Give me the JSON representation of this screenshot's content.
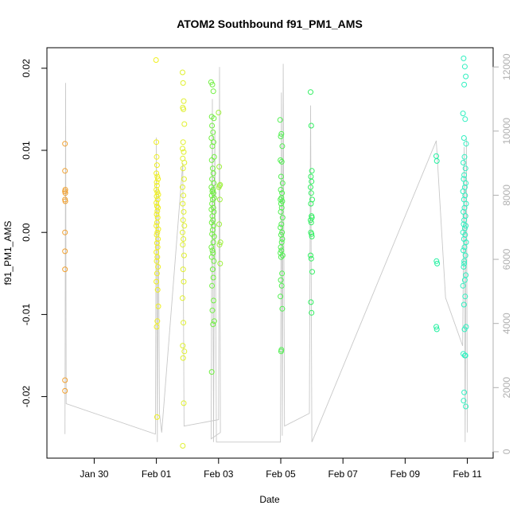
{
  "chart_data": {
    "type": "scatter",
    "title": "ATOM2 Southbound f91_PM1_AMS",
    "xlabel": "Date",
    "ylabel": "f91_PM1_AMS",
    "x_ticks": [
      "Jan 30",
      "Feb 01",
      "Feb 03",
      "Feb 05",
      "Feb 07",
      "Feb 09",
      "Feb 11"
    ],
    "x_tick_days": [
      30,
      32,
      34,
      36,
      38,
      40,
      42
    ],
    "xlim": [
      28.48,
      42.83
    ],
    "y_ticks": [
      -0.02,
      -0.01,
      0.0,
      0.01,
      0.02
    ],
    "y_tick_labels": [
      "-0.02",
      "-0.01",
      "0.00",
      "0.01",
      "0.02"
    ],
    "ylim": [
      -0.0275,
      0.0225
    ],
    "y2_ticks": [
      0,
      2000,
      4000,
      6000,
      8000,
      10000,
      12000
    ],
    "y2lim": [
      -200,
      12600
    ],
    "series": [
      {
        "color": "#f0a030",
        "x": [
          29.06,
          29.06,
          29.07,
          29.06,
          29.07,
          29.06,
          29.07,
          29.06,
          29.06,
          29.06,
          29.06,
          29.06
        ],
        "y": [
          0.0108,
          0.0075,
          0.0052,
          0.005,
          0.0048,
          0.004,
          0.0038,
          0.0,
          -0.0023,
          -0.0045,
          -0.018,
          -0.0193
        ]
      },
      {
        "color": "#f0f020",
        "x": [
          31.99,
          32.0,
          32.01,
          32.02,
          32.0,
          32.03,
          32.05,
          32.01,
          32.02,
          32.0,
          32.03,
          32.06,
          32.01,
          32.04,
          32.0,
          32.02,
          32.05,
          32.03,
          32.01,
          32.04,
          32.02,
          32.0,
          32.06,
          32.03,
          32.01,
          32.05,
          32.02,
          32.04,
          32.0,
          32.03,
          32.01,
          32.05,
          32.02,
          32.0,
          32.04,
          32.06,
          32.03,
          32.01,
          32.02
        ],
        "y": [
          0.021,
          0.011,
          0.0092,
          0.0082,
          0.0072,
          0.0068,
          0.0065,
          0.0061,
          0.0057,
          0.0052,
          0.0049,
          0.0046,
          0.0044,
          0.004,
          0.0036,
          0.0032,
          0.003,
          0.0026,
          0.0022,
          0.0018,
          0.0012,
          0.0008,
          0.0004,
          0.0,
          -0.0003,
          -0.0008,
          -0.0013,
          -0.0018,
          -0.0024,
          -0.003,
          -0.0035,
          -0.0042,
          -0.005,
          -0.006,
          -0.007,
          -0.009,
          -0.0108,
          -0.0115,
          -0.0225
        ]
      },
      {
        "color": "#e0f030",
        "x": [
          32.84,
          32.86,
          32.88,
          32.85,
          32.87,
          32.9,
          32.86,
          32.84,
          32.88,
          32.85,
          32.9,
          32.86,
          32.89,
          32.84,
          32.87,
          32.85,
          32.88,
          32.86,
          32.9,
          32.84,
          32.87,
          32.85,
          32.89,
          32.86,
          32.88,
          32.84,
          32.87,
          32.85,
          32.9,
          32.86,
          32.88,
          32.85
        ],
        "y": [
          0.0195,
          0.0182,
          0.016,
          0.0152,
          0.015,
          0.0132,
          0.011,
          0.0102,
          0.0098,
          0.009,
          0.0085,
          0.0078,
          0.0065,
          0.0055,
          0.0045,
          0.0035,
          0.0025,
          0.0015,
          0.0008,
          0.0,
          -0.0008,
          -0.0015,
          -0.0028,
          -0.0045,
          -0.006,
          -0.008,
          -0.011,
          -0.0138,
          -0.0145,
          -0.0153,
          -0.0208,
          -0.026
        ]
      },
      {
        "color": "#a0f040",
        "x": [
          34.0,
          34.02,
          34.05,
          34.03,
          34.01,
          34.04,
          34.02,
          34.06,
          34.03,
          34.05
        ],
        "y": [
          0.0146,
          0.008,
          0.0058,
          0.0057,
          0.0055,
          0.004,
          0.001,
          -0.0012,
          -0.0015,
          -0.0038
        ]
      },
      {
        "color": "#70f040",
        "x": [
          33.76,
          33.8,
          33.83,
          33.78,
          33.85,
          33.79,
          33.82,
          33.77,
          33.84,
          33.8,
          33.86,
          33.78,
          33.81,
          33.83,
          33.79,
          33.85,
          33.77,
          33.82,
          33.8,
          33.84,
          33.78,
          33.86,
          33.81,
          33.79,
          33.83,
          33.77,
          33.85,
          33.8,
          33.82,
          33.78,
          33.84,
          33.81,
          33.79,
          33.86,
          33.83,
          33.77,
          33.8,
          33.82,
          33.78,
          33.85,
          33.81,
          33.83,
          33.79,
          33.84,
          33.8,
          33.86,
          33.82,
          33.78
        ],
        "y": [
          0.0183,
          0.018,
          0.0172,
          0.0141,
          0.0139,
          0.013,
          0.0122,
          0.0115,
          0.011,
          0.0105,
          0.0092,
          0.0088,
          0.0078,
          0.0072,
          0.0065,
          0.006,
          0.0055,
          0.0052,
          0.005,
          0.0048,
          0.0045,
          0.0042,
          0.004,
          0.0035,
          0.003,
          0.0028,
          0.0025,
          0.002,
          0.0015,
          0.0012,
          0.0008,
          0.0003,
          -0.0002,
          -0.0005,
          -0.0012,
          -0.0018,
          -0.0022,
          -0.0025,
          -0.003,
          -0.0035,
          -0.0045,
          -0.0055,
          -0.0065,
          -0.0083,
          -0.0095,
          -0.0108,
          -0.0112,
          -0.017
        ]
      },
      {
        "color": "#50f050",
        "x": [
          35.98,
          36.02,
          36.0,
          36.05,
          35.99,
          36.03,
          36.01,
          36.06,
          36.0,
          36.04,
          36.02,
          35.99,
          36.05,
          36.01,
          36.03,
          36.0,
          36.06,
          36.02,
          35.99,
          36.04,
          36.01,
          36.05,
          36.03,
          36.0,
          36.02,
          35.99,
          36.06,
          36.01,
          36.04,
          36.0,
          36.03,
          35.99,
          36.05,
          36.02,
          36.01
        ],
        "y": [
          0.0137,
          0.012,
          0.0117,
          0.0105,
          0.0088,
          0.0086,
          0.0068,
          0.006,
          0.0052,
          0.0048,
          0.0042,
          0.004,
          0.0038,
          0.0035,
          0.003,
          0.0025,
          0.0018,
          0.001,
          0.0006,
          0.0,
          -0.0003,
          -0.0008,
          -0.0012,
          -0.0018,
          -0.0022,
          -0.0025,
          -0.0028,
          -0.003,
          -0.005,
          -0.0058,
          -0.0065,
          -0.0078,
          -0.0093,
          -0.0143,
          -0.0145
        ]
      },
      {
        "color": "#30f060",
        "x": [
          36.96,
          36.98,
          37.0,
          36.97,
          36.99,
          36.96,
          36.98,
          37.01,
          36.97,
          36.99,
          37.0,
          36.96,
          36.98,
          36.97,
          36.99,
          37.0,
          36.96,
          36.98,
          37.01,
          36.97,
          36.99
        ],
        "y": [
          0.0171,
          0.013,
          0.0075,
          0.0068,
          0.0062,
          0.0055,
          0.0048,
          0.004,
          0.0035,
          0.002,
          0.0018,
          0.0015,
          0.0012,
          0.0,
          -0.0002,
          -0.0005,
          -0.0028,
          -0.0032,
          -0.0048,
          -0.0085,
          -0.0098
        ]
      },
      {
        "color": "#20f0a0",
        "x": [
          41.0,
          41.02,
          41.01,
          41.03,
          41.0,
          41.02
        ],
        "y": [
          0.0093,
          0.0087,
          -0.0035,
          -0.0038,
          -0.0115,
          -0.0118
        ]
      },
      {
        "color": "#30f0c0",
        "x": [
          41.88,
          41.92,
          41.95,
          41.9,
          41.86,
          41.93,
          41.89,
          41.96,
          41.91,
          41.87,
          41.94,
          41.9,
          41.88,
          41.95,
          41.92,
          41.86,
          41.93,
          41.89,
          41.96,
          41.91,
          41.87,
          41.94,
          41.9,
          41.88,
          41.95,
          41.92,
          41.86,
          41.93,
          41.89,
          41.96,
          41.91,
          41.87,
          41.94,
          41.9,
          41.88,
          41.95,
          41.92,
          41.86,
          41.93,
          41.89,
          41.96,
          41.91,
          41.87,
          41.94,
          41.9,
          41.88,
          41.95,
          41.92,
          41.9
        ],
        "y": [
          0.0212,
          0.0202,
          0.019,
          0.018,
          0.0145,
          0.0138,
          0.0115,
          0.0108,
          0.0092,
          0.0085,
          0.0078,
          0.007,
          0.0065,
          0.006,
          0.0055,
          0.005,
          0.0045,
          0.004,
          0.0035,
          0.003,
          0.0025,
          0.002,
          0.0015,
          0.001,
          0.0008,
          0.0005,
          0.0,
          -0.0003,
          -0.0008,
          -0.0012,
          -0.0018,
          -0.0022,
          -0.0028,
          -0.0035,
          -0.0042,
          -0.0052,
          -0.0058,
          -0.0065,
          -0.0078,
          -0.0088,
          -0.0115,
          -0.0118,
          -0.0148,
          -0.015,
          -0.0195,
          -0.0205,
          -0.0212,
          -0.015,
          -0.0038
        ]
      }
    ],
    "secondary_line": {
      "color": "#c8c8c8",
      "axis": "right",
      "points": [
        [
          29.06,
          550
        ],
        [
          29.08,
          11500
        ],
        [
          29.1,
          1500
        ],
        [
          31.97,
          550
        ],
        [
          32.0,
          9800
        ],
        [
          32.03,
          300
        ],
        [
          32.06,
          8200
        ],
        [
          32.1,
          1200
        ],
        [
          32.17,
          600
        ],
        [
          32.85,
          9000
        ],
        [
          32.89,
          800
        ],
        [
          34.0,
          1000
        ],
        [
          34.03,
          12000
        ],
        [
          34.06,
          600
        ],
        [
          33.76,
          400
        ],
        [
          33.8,
          11000
        ],
        [
          33.84,
          300
        ],
        [
          33.88,
          10000
        ],
        [
          33.93,
          300
        ],
        [
          35.99,
          300
        ],
        [
          36.02,
          11200
        ],
        [
          36.05,
          500
        ],
        [
          36.08,
          12100
        ],
        [
          36.12,
          800
        ],
        [
          36.92,
          1200
        ],
        [
          36.96,
          10800
        ],
        [
          37.0,
          300
        ],
        [
          41.0,
          9700
        ],
        [
          41.3,
          4800
        ],
        [
          41.85,
          3300
        ],
        [
          41.9,
          9500
        ],
        [
          41.93,
          300
        ],
        [
          41.97,
          9800
        ],
        [
          42.0,
          600
        ]
      ]
    }
  }
}
